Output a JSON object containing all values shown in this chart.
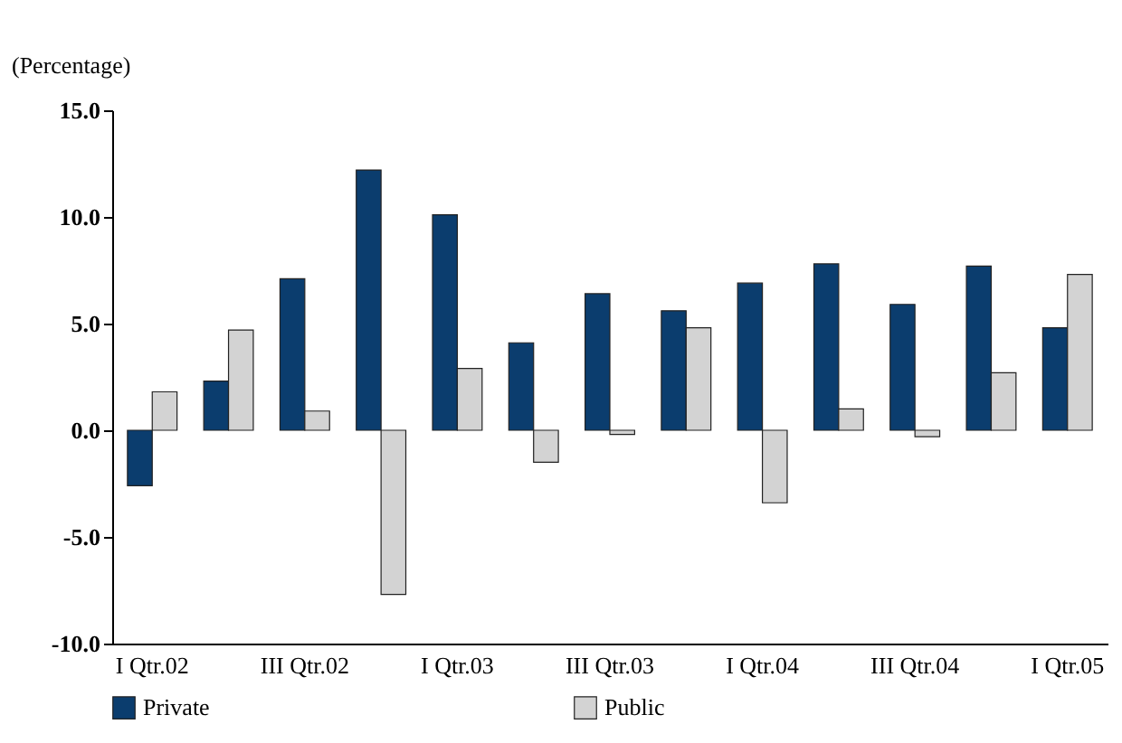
{
  "chart_data": {
    "type": "bar",
    "ylabel": "(Percentage)",
    "categories": [
      "I Qtr.02",
      null,
      "III Qtr.02",
      null,
      "I Qtr.03",
      null,
      "III Qtr.03",
      null,
      "I Qtr.04",
      null,
      "III Qtr.04",
      null,
      "I Qtr.05"
    ],
    "series": [
      {
        "name": "Private",
        "color": "#0b3d6e",
        "values": [
          -2.6,
          2.3,
          7.1,
          12.2,
          10.1,
          4.1,
          6.4,
          5.6,
          6.9,
          7.8,
          5.9,
          7.7,
          4.8
        ]
      },
      {
        "name": "Public",
        "color": "#d3d3d3",
        "values": [
          1.8,
          4.7,
          0.9,
          -7.7,
          2.9,
          -1.5,
          -0.2,
          4.8,
          -3.4,
          1.0,
          -0.3,
          2.7,
          7.3
        ]
      }
    ],
    "ylim": [
      -10,
      15
    ],
    "yticks": [
      {
        "value": -10,
        "label": "-10.0"
      },
      {
        "value": -5,
        "label": "-5.0"
      },
      {
        "value": 0,
        "label": "0.0"
      },
      {
        "value": 5,
        "label": "5.0"
      },
      {
        "value": 10,
        "label": "10.0"
      },
      {
        "value": 15,
        "label": "15.0"
      }
    ],
    "grid": false,
    "legend": "bottom"
  }
}
